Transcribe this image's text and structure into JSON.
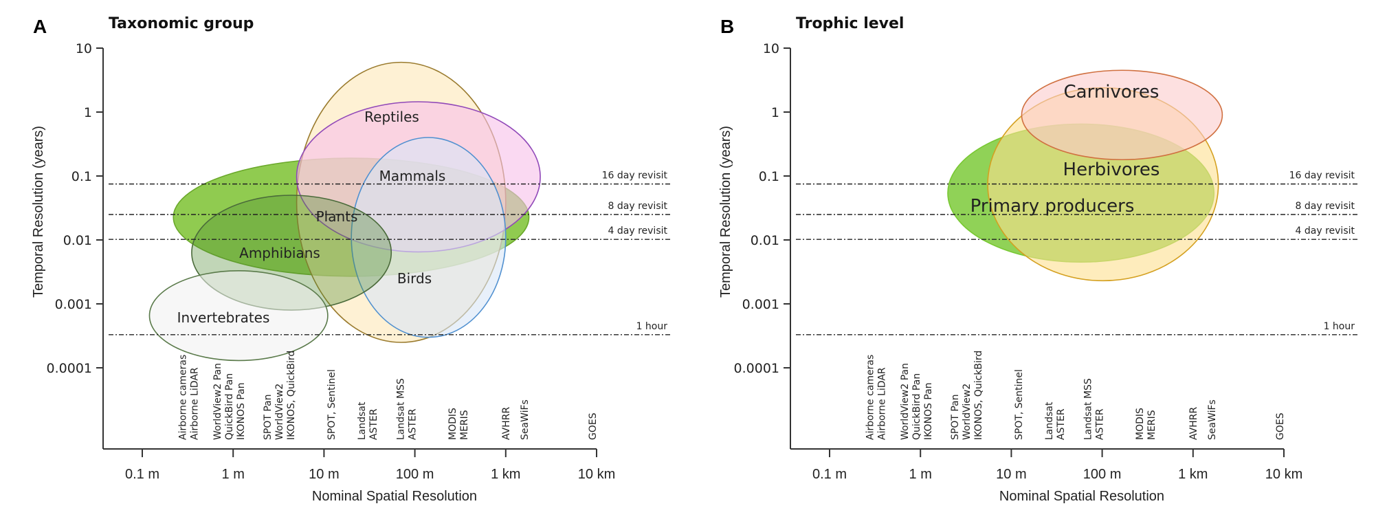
{
  "chart_data": [
    {
      "type": "scatter",
      "subtype": "ellipse-ranges",
      "panel_letter": "A",
      "title": "Taxonomic group",
      "xlabel": "Nominal Spatial Resolution",
      "ylabel": "Temporal Resolution (years)",
      "xscale": "log",
      "yscale": "log",
      "xlim_m": [
        0.1,
        10000
      ],
      "ylim_years": [
        0.0001,
        10
      ],
      "x_ticks": [
        {
          "value": 0.1,
          "label": "0.1 m"
        },
        {
          "value": 1,
          "label": "1 m"
        },
        {
          "value": 10,
          "label": "10 m"
        },
        {
          "value": 100,
          "label": "100 m"
        },
        {
          "value": 1000,
          "label": "1 km"
        },
        {
          "value": 10000,
          "label": "10 km"
        }
      ],
      "y_ticks": [
        {
          "value": 10,
          "label": "10"
        },
        {
          "value": 1,
          "label": "1"
        },
        {
          "value": 0.1,
          "label": "0.1"
        },
        {
          "value": 0.01,
          "label": "0.01"
        },
        {
          "value": 0.001,
          "label": "0.001"
        },
        {
          "value": 0.0001,
          "label": "0.0001"
        }
      ],
      "reference_lines": [
        {
          "label": "16 day revisit",
          "value": 0.075
        },
        {
          "label": "8 day revisit",
          "value": 0.025
        },
        {
          "label": "4 day revisit",
          "value": 0.0102
        },
        {
          "label": "1 hour",
          "value": 0.00033
        }
      ],
      "sensors": [
        {
          "x": 0.32,
          "lines": [
            "Airborne cameras",
            "Airborne LiDAR"
          ]
        },
        {
          "x": 0.9,
          "lines": [
            "WorldView2 Pan",
            "QuickBird Pan",
            "IKONOS Pan"
          ]
        },
        {
          "x": 3.2,
          "lines": [
            "SPOT Pan",
            "WorldView2",
            "IKONOS, QuickBird"
          ]
        },
        {
          "x": 12,
          "lines": [
            "SPOT, Sentinel"
          ]
        },
        {
          "x": 30,
          "lines": [
            "Landsat",
            "ASTER"
          ]
        },
        {
          "x": 80,
          "lines": [
            "Landsat MSS",
            "ASTER"
          ]
        },
        {
          "x": 300,
          "lines": [
            "MODIS",
            "MERIS"
          ]
        },
        {
          "x": 1000,
          "lines": [
            "AVHRR"
          ]
        },
        {
          "x": 1600,
          "lines": [
            "SeaWiFs"
          ]
        },
        {
          "x": 9000,
          "lines": [
            "GOES"
          ]
        }
      ],
      "groups": [
        {
          "name": "Plants",
          "x_range_m": [
            0.22,
            1800
          ],
          "y_range_years": [
            0.0027,
            0.19
          ],
          "fill": "#78bf2a",
          "stroke": "#6aa82a",
          "label_color": "#7a6048"
        },
        {
          "name": "Reptiles",
          "x_range_m": [
            5,
            1000
          ],
          "y_range_years": [
            0.00025,
            6
          ],
          "fill": "#fde8b8",
          "stroke": "#9a7b2e",
          "label_color": "#4a3030"
        },
        {
          "name": "Mammals",
          "x_range_m": [
            5,
            2400
          ],
          "y_range_years": [
            0.0065,
            1.45
          ],
          "fill": "#f7c0ea",
          "stroke": "#9048b8",
          "label_color": "#111111"
        },
        {
          "name": "Birds",
          "x_range_m": [
            20,
            1000
          ],
          "y_range_years": [
            0.0003,
            0.4
          ],
          "fill": "#d8e6f6",
          "stroke": "#5090d0",
          "label_color": "#3a3010"
        },
        {
          "name": "Amphibians",
          "x_range_m": [
            0.35,
            55
          ],
          "y_range_years": [
            0.0008,
            0.05
          ],
          "fill": "#4e8a30",
          "stroke": "#4a6a3a",
          "label_color": "#111111"
        },
        {
          "name": "Invertebrates",
          "x_range_m": [
            0.12,
            11
          ],
          "y_range_years": [
            0.00013,
            0.0033
          ],
          "fill": "#f0f0f0",
          "stroke": "#5a7a4a",
          "label_color": "#222222"
        }
      ]
    },
    {
      "type": "scatter",
      "subtype": "ellipse-ranges",
      "panel_letter": "B",
      "title": "Trophic level",
      "xlabel": "Nominal Spatial Resolution",
      "ylabel": "Temporal Resolution (years)",
      "xscale": "log",
      "yscale": "log",
      "xlim_m": [
        0.1,
        10000
      ],
      "ylim_years": [
        0.0001,
        10
      ],
      "x_ticks": [
        {
          "value": 0.1,
          "label": "0.1 m"
        },
        {
          "value": 1,
          "label": "1 m"
        },
        {
          "value": 10,
          "label": "10 m"
        },
        {
          "value": 100,
          "label": "100 m"
        },
        {
          "value": 1000,
          "label": "1 km"
        },
        {
          "value": 10000,
          "label": "10 km"
        }
      ],
      "y_ticks": [
        {
          "value": 10,
          "label": "10"
        },
        {
          "value": 1,
          "label": "1"
        },
        {
          "value": 0.1,
          "label": "0.1"
        },
        {
          "value": 0.01,
          "label": "0.01"
        },
        {
          "value": 0.001,
          "label": "0.001"
        },
        {
          "value": 0.0001,
          "label": "0.0001"
        }
      ],
      "reference_lines": [
        {
          "label": "16 day revisit",
          "value": 0.075
        },
        {
          "label": "8 day revisit",
          "value": 0.025
        },
        {
          "label": "4 day revisit",
          "value": 0.0102
        },
        {
          "label": "1 hour",
          "value": 0.00033
        }
      ],
      "sensors": [
        {
          "x": 0.32,
          "lines": [
            "Airborne cameras",
            "Airborne LiDAR"
          ]
        },
        {
          "x": 0.9,
          "lines": [
            "WorldView2 Pan",
            "QuickBird Pan",
            "IKONOS Pan"
          ]
        },
        {
          "x": 3.2,
          "lines": [
            "SPOT Pan",
            "WorldView2",
            "IKONOS, QuickBird"
          ]
        },
        {
          "x": 12,
          "lines": [
            "SPOT, Sentinel"
          ]
        },
        {
          "x": 30,
          "lines": [
            "Landsat",
            "ASTER"
          ]
        },
        {
          "x": 80,
          "lines": [
            "Landsat MSS",
            "ASTER"
          ]
        },
        {
          "x": 300,
          "lines": [
            "MODIS",
            "MERIS"
          ]
        },
        {
          "x": 1000,
          "lines": [
            "AVHRR"
          ]
        },
        {
          "x": 1600,
          "lines": [
            "SeaWiFs"
          ]
        },
        {
          "x": 9000,
          "lines": [
            "GOES"
          ]
        }
      ],
      "groups": [
        {
          "name": "Primary producers",
          "x_range_m": [
            2,
            1700
          ],
          "y_range_years": [
            0.0045,
            0.65
          ],
          "fill": "#78c832",
          "stroke": "#78c832",
          "label_color": "#7a6048"
        },
        {
          "name": "Herbivores",
          "x_range_m": [
            5.5,
            1900
          ],
          "y_range_years": [
            0.0023,
            2.4
          ],
          "fill": "#fde090",
          "stroke": "#d4a020",
          "label_color": "#111111"
        },
        {
          "name": "Carnivores",
          "x_range_m": [
            13,
            2100
          ],
          "y_range_years": [
            0.18,
            4.5
          ],
          "fill": "#fbcccc",
          "stroke": "#d07040",
          "label_color": "#111111"
        }
      ]
    }
  ]
}
